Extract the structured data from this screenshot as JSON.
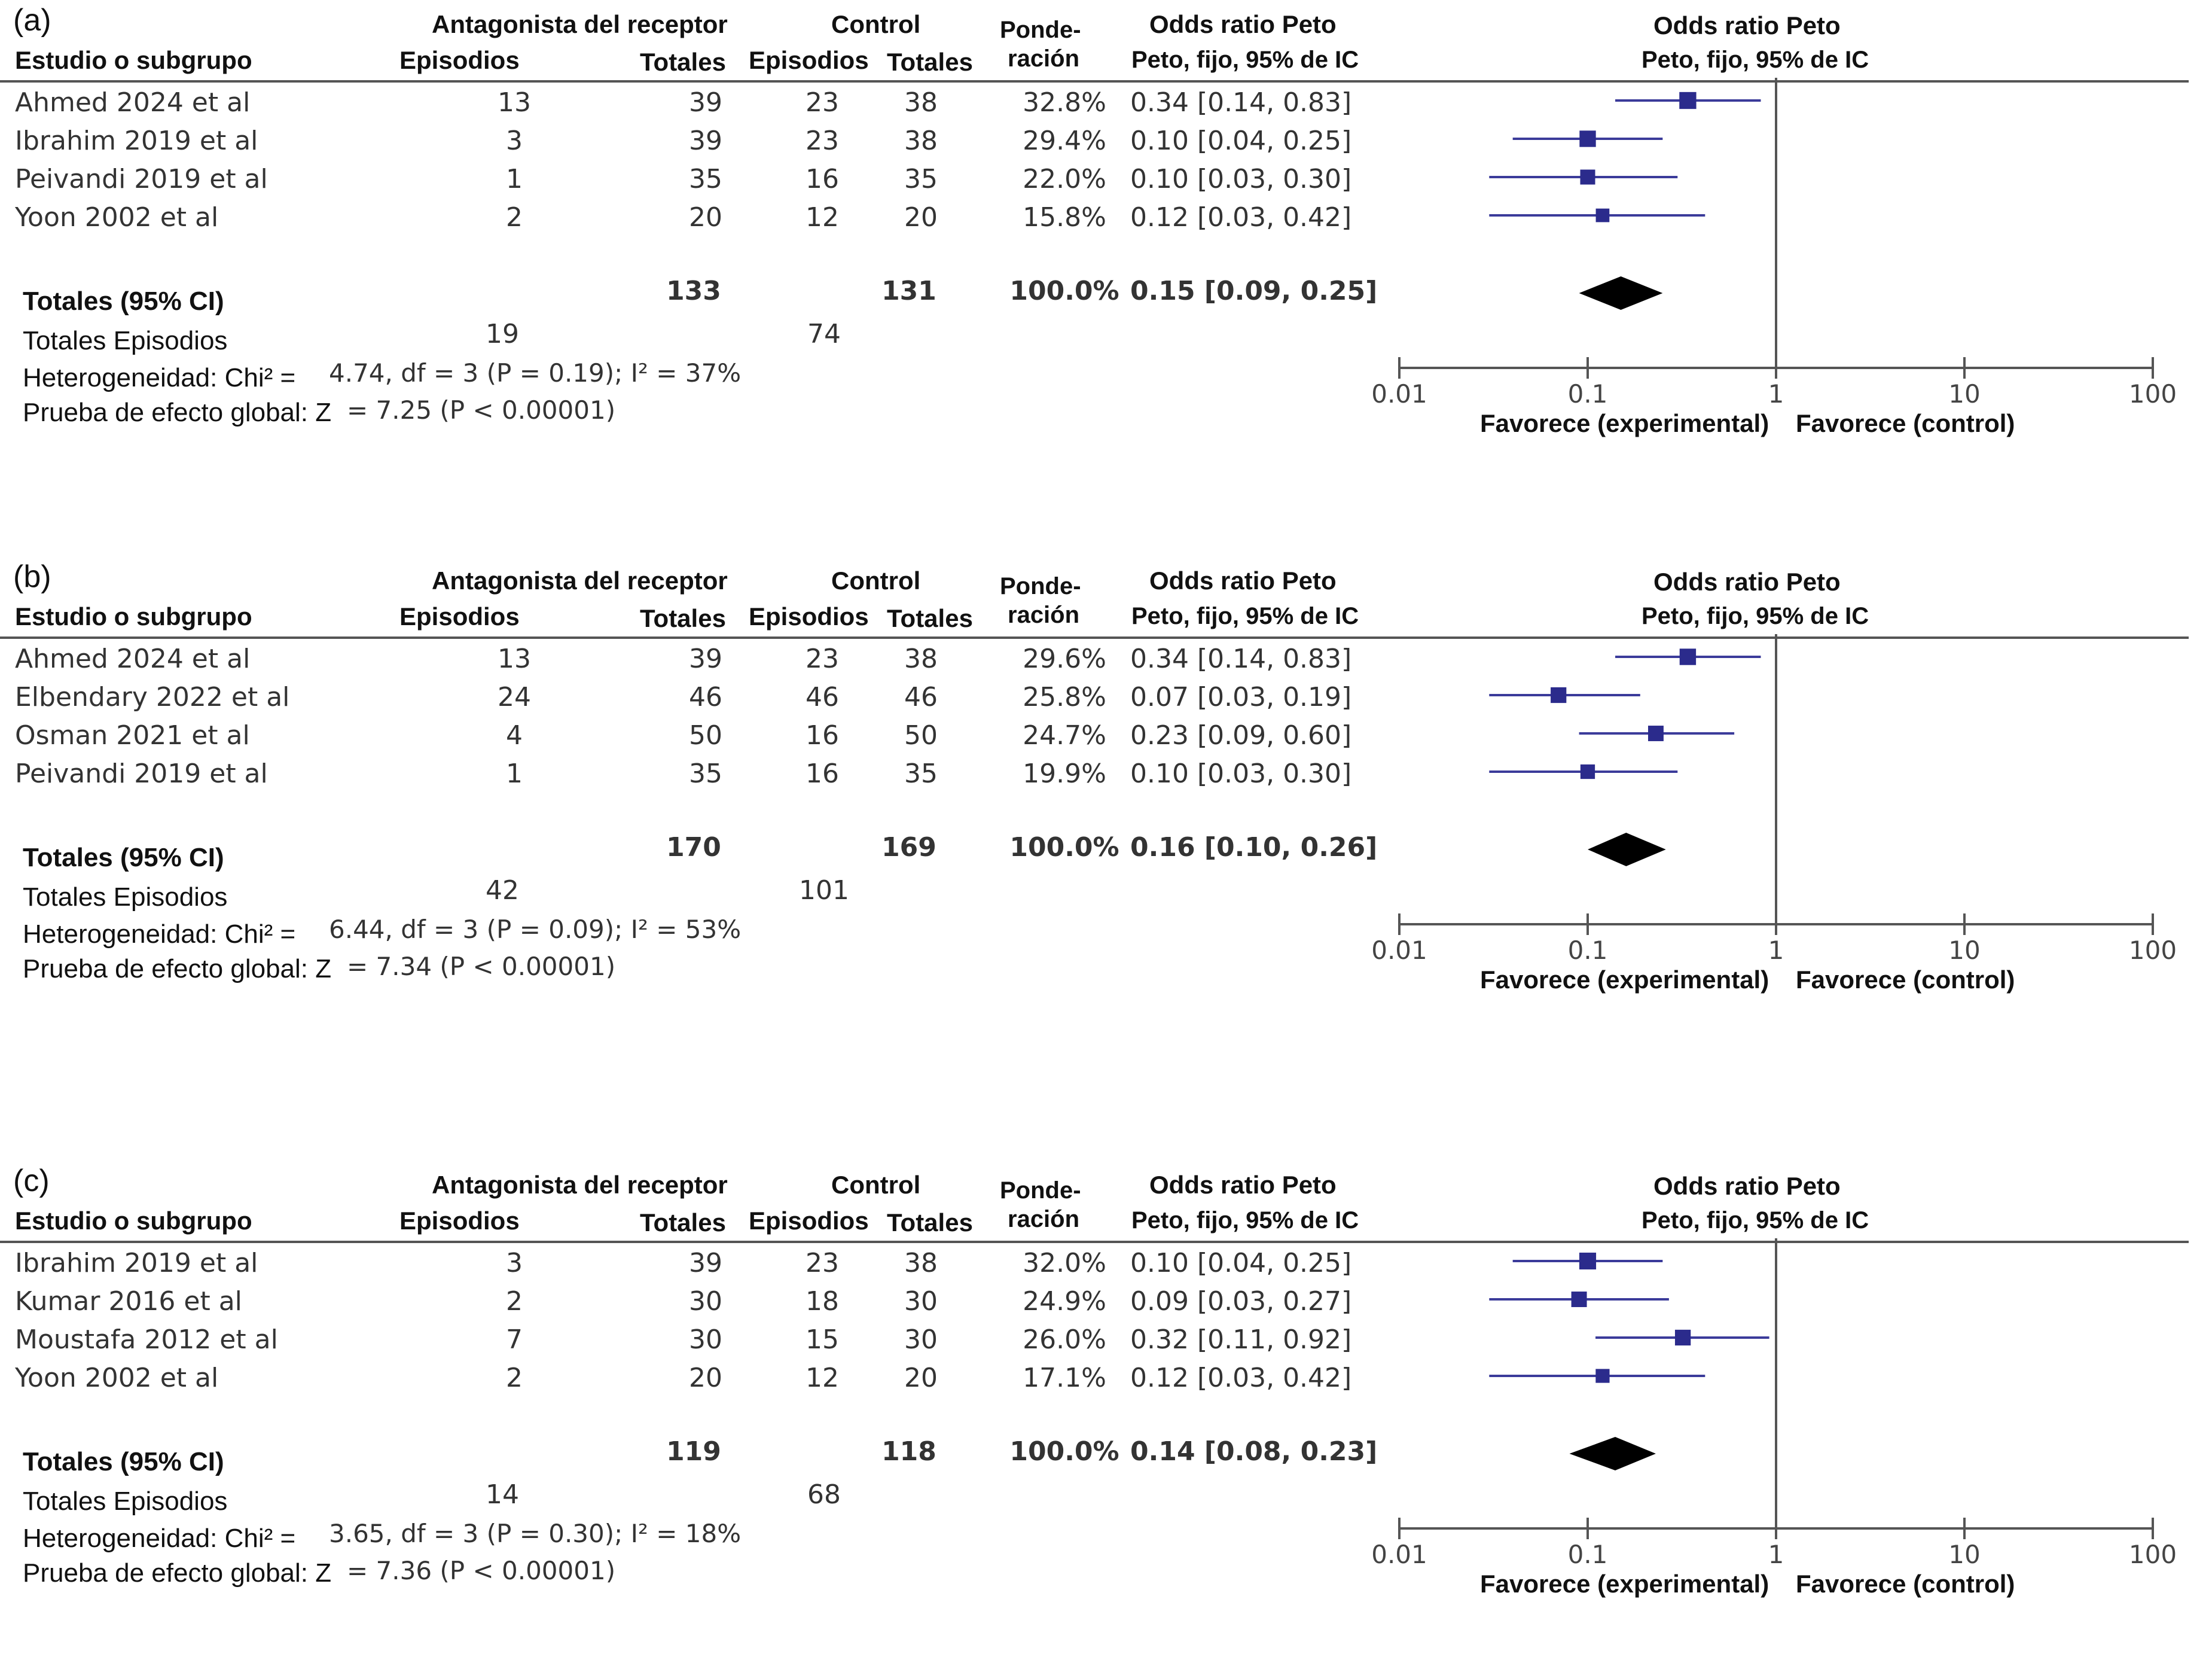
{
  "panels": [
    {
      "id": "a",
      "label": "(a)",
      "header": {
        "study": "Estudio o subgrupo",
        "exp_group": "Antagonista del receptor",
        "ctrl_group": "Control",
        "events": "Episodios",
        "totals": "Totales",
        "ctrl_events": "Episodios",
        "ctrl_totals": "Totales",
        "weight_1": "Ponde-",
        "weight_2": "ración",
        "or_title": "Odds ratio Peto",
        "or_sub": "Peto, fijo, 95% de IC",
        "plot_title": "Odds ratio Peto",
        "plot_sub": "Peto, fijo, 95% de IC"
      },
      "rows": [
        {
          "study": "Ahmed 2024 et al",
          "exp_events": "13",
          "exp_total": "39",
          "ctrl_events": "23",
          "ctrl_total": "38",
          "weight": "32.8%",
          "or_text": "0.34 [0.14, 0.83]"
        },
        {
          "study": "Ibrahim 2019 et al",
          "exp_events": "3",
          "exp_total": "39",
          "ctrl_events": "23",
          "ctrl_total": "38",
          "weight": "29.4%",
          "or_text": "0.10 [0.04, 0.25]"
        },
        {
          "study": "Peivandi 2019 et al",
          "exp_events": "1",
          "exp_total": "35",
          "ctrl_events": "16",
          "ctrl_total": "35",
          "weight": "22.0%",
          "or_text": "0.10 [0.03, 0.30]"
        },
        {
          "study": "Yoon 2002 et al",
          "exp_events": "2",
          "exp_total": "20",
          "ctrl_events": "12",
          "ctrl_total": "20",
          "weight": "15.8%",
          "or_text": "0.12 [0.03, 0.42]"
        }
      ],
      "total": {
        "label": "Totales (95% CI)",
        "exp_total": "133",
        "ctrl_total": "131",
        "weight": "100.0%",
        "or_text": "0.15 [0.09, 0.25]"
      },
      "total_events": {
        "label": "Totales Episodios",
        "exp": "19",
        "ctrl": "74"
      },
      "heterogeneity": {
        "label": "Heterogeneidad: Chi² =",
        "value": "4.74, df = 3 (P = 0.19); I² = 37%"
      },
      "overall": {
        "label": "Prueba de efecto global: Z",
        "value": "= 7.25 (P < 0.00001)"
      },
      "favours_left": "Favorece (experimental)",
      "favours_right": "Favorece (control)"
    },
    {
      "id": "b",
      "label": "(b)",
      "header": {
        "study": "Estudio o subgrupo",
        "exp_group": "Antagonista del receptor",
        "ctrl_group": "Control",
        "events": "Episodios",
        "totals": "Totales",
        "ctrl_events": "Episodios",
        "ctrl_totals": "Totales",
        "weight_1": "Ponde-",
        "weight_2": "ración",
        "or_title": "Odds ratio Peto",
        "or_sub": "Peto, fijo, 95% de IC",
        "plot_title": "Odds ratio Peto",
        "plot_sub": "Peto, fijo, 95% de IC"
      },
      "rows": [
        {
          "study": "Ahmed 2024 et al",
          "exp_events": "13",
          "exp_total": "39",
          "ctrl_events": "23",
          "ctrl_total": "38",
          "weight": "29.6%",
          "or_text": "0.34 [0.14, 0.83]"
        },
        {
          "study": "Elbendary 2022 et al",
          "exp_events": "24",
          "exp_total": "46",
          "ctrl_events": "46",
          "ctrl_total": "46",
          "weight": "25.8%",
          "or_text": "0.07 [0.03, 0.19]"
        },
        {
          "study": "Osman 2021 et al",
          "exp_events": "4",
          "exp_total": "50",
          "ctrl_events": "16",
          "ctrl_total": "50",
          "weight": "24.7%",
          "or_text": "0.23 [0.09, 0.60]"
        },
        {
          "study": "Peivandi 2019 et al",
          "exp_events": "1",
          "exp_total": "35",
          "ctrl_events": "16",
          "ctrl_total": "35",
          "weight": "19.9%",
          "or_text": "0.10 [0.03, 0.30]"
        }
      ],
      "total": {
        "label": "Totales (95% CI)",
        "exp_total": "170",
        "ctrl_total": "169",
        "weight": "100.0%",
        "or_text": "0.16 [0.10, 0.26]"
      },
      "total_events": {
        "label": "Totales Episodios",
        "exp": "42",
        "ctrl": "101"
      },
      "heterogeneity": {
        "label": "Heterogeneidad: Chi² =",
        "value": "6.44, df = 3 (P = 0.09); I² = 53%"
      },
      "overall": {
        "label": "Prueba de efecto global: Z",
        "value": "= 7.34 (P < 0.00001)"
      },
      "favours_left": "Favorece (experimental)",
      "favours_right": "Favorece (control)"
    },
    {
      "id": "c",
      "label": "(c)",
      "header": {
        "study": "Estudio o subgrupo",
        "exp_group": "Antagonista del receptor",
        "ctrl_group": "Control",
        "events": "Episodios",
        "totals": "Totales",
        "ctrl_events": "Episodios",
        "ctrl_totals": "Totales",
        "weight_1": "Ponde-",
        "weight_2": "ración",
        "or_title": "Odds ratio Peto",
        "or_sub": "Peto, fijo, 95% de IC",
        "plot_title": "Odds ratio Peto",
        "plot_sub": "Peto, fijo, 95% de IC"
      },
      "rows": [
        {
          "study": "Ibrahim 2019 et al",
          "exp_events": "3",
          "exp_total": "39",
          "ctrl_events": "23",
          "ctrl_total": "38",
          "weight": "32.0%",
          "or_text": "0.10 [0.04, 0.25]"
        },
        {
          "study": "Kumar 2016 et al",
          "exp_events": "2",
          "exp_total": "30",
          "ctrl_events": "18",
          "ctrl_total": "30",
          "weight": "24.9%",
          "or_text": "0.09 [0.03, 0.27]"
        },
        {
          "study": "Moustafa 2012 et al",
          "exp_events": "7",
          "exp_total": "30",
          "ctrl_events": "15",
          "ctrl_total": "30",
          "weight": "26.0%",
          "or_text": "0.32 [0.11, 0.92]"
        },
        {
          "study": "Yoon 2002 et al",
          "exp_events": "2",
          "exp_total": "20",
          "ctrl_events": "12",
          "ctrl_total": "20",
          "weight": "17.1%",
          "or_text": "0.12 [0.03, 0.42]"
        }
      ],
      "total": {
        "label": "Totales (95% CI)",
        "exp_total": "119",
        "ctrl_total": "118",
        "weight": "100.0%",
        "or_text": "0.14 [0.08, 0.23]"
      },
      "total_events": {
        "label": "Totales Episodios",
        "exp": "14",
        "ctrl": "68"
      },
      "heterogeneity": {
        "label": "Heterogeneidad: Chi² =",
        "value": "3.65, df = 3 (P = 0.30); I² = 18%"
      },
      "overall": {
        "label": "Prueba de efecto global: Z",
        "value": "= 7.36 (P < 0.00001)"
      },
      "favours_left": "Favorece (experimental)",
      "favours_right": "Favorece (control)"
    }
  ],
  "colors": {
    "marker": "#2b2b8c",
    "ci_line": "#3b3b9a",
    "diamond": "#000000",
    "axis": "#555555"
  },
  "chart_data": [
    {
      "type": "scatter",
      "title": "Odds ratio Peto",
      "scale": "log",
      "xlim": [
        0.01,
        100
      ],
      "ticks": [
        "0.01",
        "0.1",
        "1",
        "10",
        "100"
      ],
      "tick_values": [
        0.01,
        0.1,
        1,
        10,
        100
      ],
      "reference_line": 1,
      "studies": [
        {
          "study": "Ahmed 2024 et al",
          "or": 0.34,
          "lo": 0.14,
          "hi": 0.83,
          "weight": 32.8
        },
        {
          "study": "Ibrahim 2019 et al",
          "or": 0.1,
          "lo": 0.04,
          "hi": 0.25,
          "weight": 29.4
        },
        {
          "study": "Peivandi 2019 et al",
          "or": 0.1,
          "lo": 0.03,
          "hi": 0.3,
          "weight": 22.0
        },
        {
          "study": "Yoon 2002 et al",
          "or": 0.12,
          "lo": 0.03,
          "hi": 0.42,
          "weight": 15.8
        }
      ],
      "pooled": {
        "or": 0.15,
        "lo": 0.09,
        "hi": 0.25
      }
    },
    {
      "type": "scatter",
      "title": "Odds ratio Peto",
      "scale": "log",
      "xlim": [
        0.01,
        100
      ],
      "ticks": [
        "0.01",
        "0.1",
        "1",
        "10",
        "100"
      ],
      "tick_values": [
        0.01,
        0.1,
        1,
        10,
        100
      ],
      "reference_line": 1,
      "studies": [
        {
          "study": "Ahmed 2024 et al",
          "or": 0.34,
          "lo": 0.14,
          "hi": 0.83,
          "weight": 29.6
        },
        {
          "study": "Elbendary 2022 et al",
          "or": 0.07,
          "lo": 0.03,
          "hi": 0.19,
          "weight": 25.8
        },
        {
          "study": "Osman 2021 et al",
          "or": 0.23,
          "lo": 0.09,
          "hi": 0.6,
          "weight": 24.7
        },
        {
          "study": "Peivandi 2019 et al",
          "or": 0.1,
          "lo": 0.03,
          "hi": 0.3,
          "weight": 19.9
        }
      ],
      "pooled": {
        "or": 0.16,
        "lo": 0.1,
        "hi": 0.26
      }
    },
    {
      "type": "scatter",
      "title": "Odds ratio Peto",
      "scale": "log",
      "xlim": [
        0.01,
        100
      ],
      "ticks": [
        "0.01",
        "0.1",
        "1",
        "10",
        "100"
      ],
      "tick_values": [
        0.01,
        0.1,
        1,
        10,
        100
      ],
      "reference_line": 1,
      "studies": [
        {
          "study": "Ibrahim 2019 et al",
          "or": 0.1,
          "lo": 0.04,
          "hi": 0.25,
          "weight": 32.0
        },
        {
          "study": "Kumar 2016 et al",
          "or": 0.09,
          "lo": 0.03,
          "hi": 0.27,
          "weight": 24.9
        },
        {
          "study": "Moustafa 2012 et al",
          "or": 0.32,
          "lo": 0.11,
          "hi": 0.92,
          "weight": 26.0
        },
        {
          "study": "Yoon 2002 et al",
          "or": 0.12,
          "lo": 0.03,
          "hi": 0.42,
          "weight": 17.1
        }
      ],
      "pooled": {
        "or": 0.14,
        "lo": 0.08,
        "hi": 0.23
      }
    }
  ]
}
